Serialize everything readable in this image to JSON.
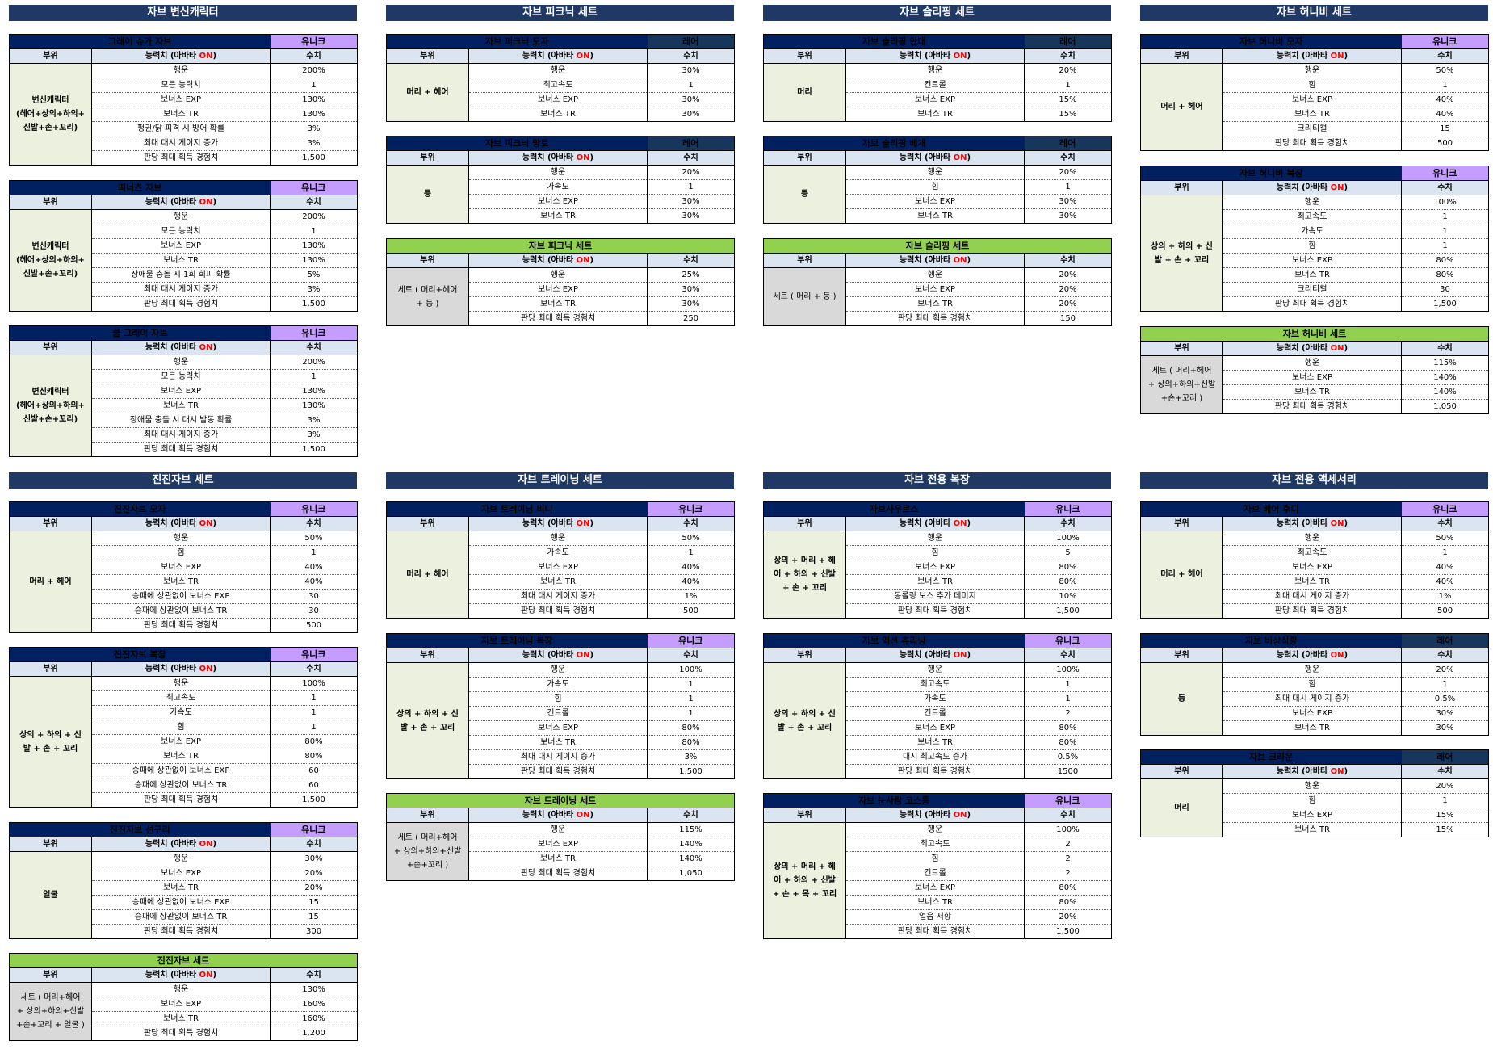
{
  "header_labels": {
    "part": "부위",
    "stat_prefix": "능력치 (아바타 ",
    "stat_on": "ON",
    "stat_suffix": ")",
    "value": "수치"
  },
  "columns": [
    {
      "title": "자브 변신캐릭터",
      "titles2": "진진자브 세트"
    },
    {
      "title": "자브 피크닉 세트",
      "titles2": "자브 트레이닝 세트"
    },
    {
      "title": "자브 슬리핑 세트",
      "titles2": "자브 전용 복장"
    },
    {
      "title": "자브 허니비 세트",
      "titles2": "자브 전용 액세서리"
    }
  ],
  "tables": [
    {
      "name": "그레이 슈가 자브",
      "grade": "유니크",
      "grade_type": "unique",
      "part": "변신캐릭터\n(헤어+상의+하의+\n신발+손+꼬리)",
      "rows": [
        [
          "행운",
          "200%",
          "green"
        ],
        [
          "모든 능력치",
          "1"
        ],
        [
          "보너스 EXP",
          "130%"
        ],
        [
          "보너스 TR",
          "130%"
        ],
        [
          "펑귄/닭 피격 시 방어 확률",
          "3%"
        ],
        [
          "최대 대시 게이지 증가",
          "3%"
        ],
        [
          "판당 최대 획득 경험치",
          "1,500"
        ]
      ]
    },
    {
      "name": "피너츠 자브",
      "grade": "유니크",
      "grade_type": "unique",
      "part": "변신캐릭터\n(헤어+상의+하의+\n신발+손+꼬리)",
      "rows": [
        [
          "행운",
          "200%",
          "green"
        ],
        [
          "모든 능력치",
          "1"
        ],
        [
          "보너스 EXP",
          "130%"
        ],
        [
          "보너스 TR",
          "130%"
        ],
        [
          "장애물 충돌 시 1회 회피 확률",
          "5%"
        ],
        [
          "최대 대시 게이지 증가",
          "3%"
        ],
        [
          "판당 최대 획득 경험치",
          "1,500"
        ]
      ]
    },
    {
      "name": "쿨 그레이 자브",
      "grade": "유니크",
      "grade_type": "unique",
      "part": "변신캐릭터\n(헤어+상의+하의+\n신발+손+꼬리)",
      "rows": [
        [
          "행운",
          "200%",
          "green"
        ],
        [
          "모든 능력치",
          "1"
        ],
        [
          "보너스 EXP",
          "130%"
        ],
        [
          "보너스 TR",
          "130%"
        ],
        [
          "장애물 충돌 시 대시 발동 확률",
          "3%"
        ],
        [
          "최대 대시 게이지 증가",
          "3%"
        ],
        [
          "판당 최대 획득 경험치",
          "1,500"
        ]
      ]
    },
    {
      "name": "자브 피크닉 모자",
      "grade": "레어",
      "grade_type": "rare",
      "part": "머리 + 헤어",
      "rows": [
        [
          "행운",
          "30%",
          "green"
        ],
        [
          "최고속도",
          "1"
        ],
        [
          "보너스 EXP",
          "30%"
        ],
        [
          "보너스 TR",
          "30%"
        ]
      ]
    },
    {
      "name": "자브 피크닉 망토",
      "grade": "레어",
      "grade_type": "rare",
      "part": "등",
      "rows": [
        [
          "행운",
          "20%",
          "green"
        ],
        [
          "가속도",
          "1"
        ],
        [
          "보너스 EXP",
          "30%"
        ],
        [
          "보너스 TR",
          "30%"
        ]
      ]
    },
    {
      "name": "자브 피크닉 세트",
      "grade": "",
      "grade_type": "set",
      "part": "세트 ( 머리+헤어\n+ 등 )",
      "rows": [
        [
          "행운",
          "25%",
          "green"
        ],
        [
          "보너스 EXP",
          "30%"
        ],
        [
          "보너스 TR",
          "30%"
        ],
        [
          "판당 최대 획득 경험치",
          "250"
        ]
      ]
    },
    {
      "name": "자브 슬리핑 안대",
      "grade": "레어",
      "grade_type": "rare",
      "part": "머리",
      "rows": [
        [
          "행운",
          "20%",
          "green"
        ],
        [
          "컨트롤",
          "1"
        ],
        [
          "보너스 EXP",
          "15%"
        ],
        [
          "보너스 TR",
          "15%"
        ]
      ]
    },
    {
      "name": "자브 슬리핑 베개",
      "grade": "레어",
      "grade_type": "rare",
      "part": "등",
      "rows": [
        [
          "행운",
          "20%",
          "green"
        ],
        [
          "힘",
          "1"
        ],
        [
          "보너스 EXP",
          "30%"
        ],
        [
          "보너스 TR",
          "30%"
        ]
      ]
    },
    {
      "name": "자브 슬리핑 세트",
      "grade": "",
      "grade_type": "set",
      "part": "세트 ( 머리 + 등 )",
      "rows": [
        [
          "행운",
          "20%",
          "green"
        ],
        [
          "보너스 EXP",
          "20%"
        ],
        [
          "보너스 TR",
          "20%"
        ],
        [
          "판당 최대 획득 경험치",
          "150"
        ]
      ]
    },
    {
      "name": "자브 허니비 모자",
      "grade": "유니크",
      "grade_type": "unique",
      "part": "머리 + 헤어",
      "rows": [
        [
          "행운",
          "50%",
          "green"
        ],
        [
          "힘",
          "1"
        ],
        [
          "보너스 EXP",
          "40%"
        ],
        [
          "보너스 TR",
          "40%"
        ],
        [
          "크리티컬",
          "15",
          "red"
        ],
        [
          "판당 최대 획득 경험치",
          "500"
        ]
      ]
    },
    {
      "name": "자브 허니비 복장",
      "grade": "유니크",
      "grade_type": "unique",
      "part": "상의 + 하의 + 신\n발 + 손 + 꼬리",
      "rows": [
        [
          "행운",
          "100%",
          "green"
        ],
        [
          "최고속도",
          "1"
        ],
        [
          "가속도",
          "1"
        ],
        [
          "힘",
          "1"
        ],
        [
          "보너스 EXP",
          "80%"
        ],
        [
          "보너스 TR",
          "80%"
        ],
        [
          "크리티컬",
          "30",
          "red"
        ],
        [
          "판당 최대 획득 경험치",
          "1,500"
        ]
      ]
    },
    {
      "name": "자브 허니비 세트",
      "grade": "",
      "grade_type": "set",
      "part": "세트 ( 머리+헤어\n+ 상의+하의+신발\n+손+꼬리 )",
      "rows": [
        [
          "행운",
          "115%",
          "green"
        ],
        [
          "보너스 EXP",
          "140%"
        ],
        [
          "보너스 TR",
          "140%"
        ],
        [
          "판당 최대 획득 경험치",
          "1,050"
        ]
      ]
    },
    {
      "name": "진진자브 모자",
      "grade": "유니크",
      "grade_type": "unique",
      "part": "머리 + 헤어",
      "rows": [
        [
          "행운",
          "50%",
          "green"
        ],
        [
          "힘",
          "1"
        ],
        [
          "보너스 EXP",
          "40%"
        ],
        [
          "보너스 TR",
          "40%"
        ],
        [
          "승패에 상관없이 보너스 EXP",
          "30"
        ],
        [
          "승패에 상관없이 보너스 TR",
          "30"
        ],
        [
          "판당 최대 획득 경험치",
          "500"
        ]
      ]
    },
    {
      "name": "진진자브 복장",
      "grade": "유니크",
      "grade_type": "unique",
      "part": "상의 + 하의 + 신\n발 + 손 + 꼬리",
      "rows": [
        [
          "행운",
          "100%",
          "green"
        ],
        [
          "최고속도",
          "1"
        ],
        [
          "가속도",
          "1"
        ],
        [
          "힘",
          "1"
        ],
        [
          "보너스 EXP",
          "80%"
        ],
        [
          "보너스 TR",
          "80%"
        ],
        [
          "승패에 상관없이 보너스 EXP",
          "60"
        ],
        [
          "승패에 상관없이 보너스 TR",
          "60"
        ],
        [
          "판당 최대 획득 경험치",
          "1,500"
        ]
      ]
    },
    {
      "name": "진진자브 선구리",
      "grade": "유니크",
      "grade_type": "unique",
      "part": "얼굴",
      "rows": [
        [
          "행운",
          "30%",
          "green"
        ],
        [
          "보너스 EXP",
          "20%"
        ],
        [
          "보너스 TR",
          "20%"
        ],
        [
          "승패에 상관없이 보너스 EXP",
          "15"
        ],
        [
          "승패에 상관없이 보너스 TR",
          "15"
        ],
        [
          "판당 최대 획득 경험치",
          "300"
        ]
      ]
    },
    {
      "name": "진진자브 세트",
      "grade": "",
      "grade_type": "set",
      "part": "세트 ( 머리+헤어\n+ 상의+하의+신발\n+손+꼬리 + 얼굴 )",
      "rows": [
        [
          "행운",
          "130%",
          "green"
        ],
        [
          "보너스 EXP",
          "160%"
        ],
        [
          "보너스 TR",
          "160%"
        ],
        [
          "판당 최대 획득 경험치",
          "1,200"
        ]
      ]
    },
    {
      "name": "자브 트레이닝 비니",
      "grade": "유니크",
      "grade_type": "unique",
      "part": "머리 + 헤어",
      "rows": [
        [
          "행운",
          "50%",
          "green"
        ],
        [
          "가속도",
          "1"
        ],
        [
          "보너스 EXP",
          "40%"
        ],
        [
          "보너스 TR",
          "40%"
        ],
        [
          "최대 대시 게이지 증가",
          "1%"
        ],
        [
          "판당 최대 획득 경험치",
          "500"
        ]
      ]
    },
    {
      "name": "자브 트레이닝 복장",
      "grade": "유니크",
      "grade_type": "unique",
      "part": "상의 + 하의 + 신\n발 + 손 + 꼬리",
      "rows": [
        [
          "행운",
          "100%",
          "green"
        ],
        [
          "가속도",
          "1"
        ],
        [
          "힘",
          "1"
        ],
        [
          "컨트롤",
          "1"
        ],
        [
          "보너스 EXP",
          "80%"
        ],
        [
          "보너스 TR",
          "80%"
        ],
        [
          "최대 대시 게이지 증가",
          "3%"
        ],
        [
          "판당 최대 획득 경험치",
          "1,500"
        ]
      ]
    },
    {
      "name": "자브 트레이닝 세트",
      "grade": "",
      "grade_type": "set",
      "part": "세트 ( 머리+헤어\n+ 상의+하의+신발\n+손+꼬리 )",
      "rows": [
        [
          "행운",
          "115%",
          "green"
        ],
        [
          "보너스 EXP",
          "140%"
        ],
        [
          "보너스 TR",
          "140%"
        ],
        [
          "판당 최대 획득 경험치",
          "1,050"
        ]
      ]
    },
    {
      "name": "자브사우르스",
      "grade": "유니크",
      "grade_type": "unique",
      "part": "상의 + 머리 + 헤\n어 + 하의 + 신발\n+ 손 + 꼬리",
      "rows": [
        [
          "행운",
          "100%",
          "green"
        ],
        [
          "힘",
          "5"
        ],
        [
          "보너스 EXP",
          "80%"
        ],
        [
          "보너스 TR",
          "80%"
        ],
        [
          "몽롤링 보스 추가 데미지",
          "10%",
          "red"
        ],
        [
          "판당 최대 획득 경험치",
          "1,500"
        ]
      ]
    },
    {
      "name": "자브 액션 츄리닝",
      "grade": "유니크",
      "grade_type": "unique",
      "part": "상의 + 하의 + 신\n발 + 손 + 꼬리",
      "rows": [
        [
          "행운",
          "100%",
          "green"
        ],
        [
          "최고속도",
          "1"
        ],
        [
          "가속도",
          "1"
        ],
        [
          "컨트롤",
          "2"
        ],
        [
          "보너스 EXP",
          "80%"
        ],
        [
          "보너스 TR",
          "80%"
        ],
        [
          "대시 최고속도 증가",
          "0.5%",
          "red"
        ],
        [
          "판당 최대 획득 경험치",
          "1500"
        ]
      ]
    },
    {
      "name": "자브 눈사람 코스튬",
      "grade": "유니크",
      "grade_type": "unique",
      "part": "상의 + 머리 + 헤\n어 + 하의 + 신발\n+ 손 + 목 + 꼬리",
      "rows": [
        [
          "행운",
          "100%",
          "green"
        ],
        [
          "최고속도",
          "2"
        ],
        [
          "힘",
          "2"
        ],
        [
          "컨트롤",
          "2"
        ],
        [
          "보너스 EXP",
          "80%"
        ],
        [
          "보너스 TR",
          "80%"
        ],
        [
          "얼음 저항",
          "20%"
        ],
        [
          "판당 최대 획득 경험치",
          "1,500"
        ]
      ]
    },
    {
      "name": "자브 베어 후디",
      "grade": "유니크",
      "grade_type": "unique",
      "part": "머리 + 헤어",
      "rows": [
        [
          "행운",
          "50%",
          "green"
        ],
        [
          "최고속도",
          "1"
        ],
        [
          "보너스 EXP",
          "40%"
        ],
        [
          "보너스 TR",
          "40%"
        ],
        [
          "최대 대시 게이지 증가",
          "1%"
        ],
        [
          "판당 최대 획득 경험치",
          "500"
        ]
      ]
    },
    {
      "name": "자브 비상식량",
      "grade": "레어",
      "grade_type": "rare",
      "part": "등",
      "rows": [
        [
          "행운",
          "20%",
          "green"
        ],
        [
          "힘",
          "1"
        ],
        [
          "최대 대시 게이지 증가",
          "0.5%"
        ],
        [
          "보너스 EXP",
          "30%"
        ],
        [
          "보너스 TR",
          "30%"
        ]
      ]
    },
    {
      "name": "자브 크라운",
      "grade": "레어",
      "grade_type": "rare",
      "part": "머리",
      "rows": [
        [
          "행운",
          "20%",
          "green"
        ],
        [
          "힘",
          "1"
        ],
        [
          "보너스 EXP",
          "15%"
        ],
        [
          "보너스 TR",
          "15%"
        ]
      ]
    }
  ]
}
